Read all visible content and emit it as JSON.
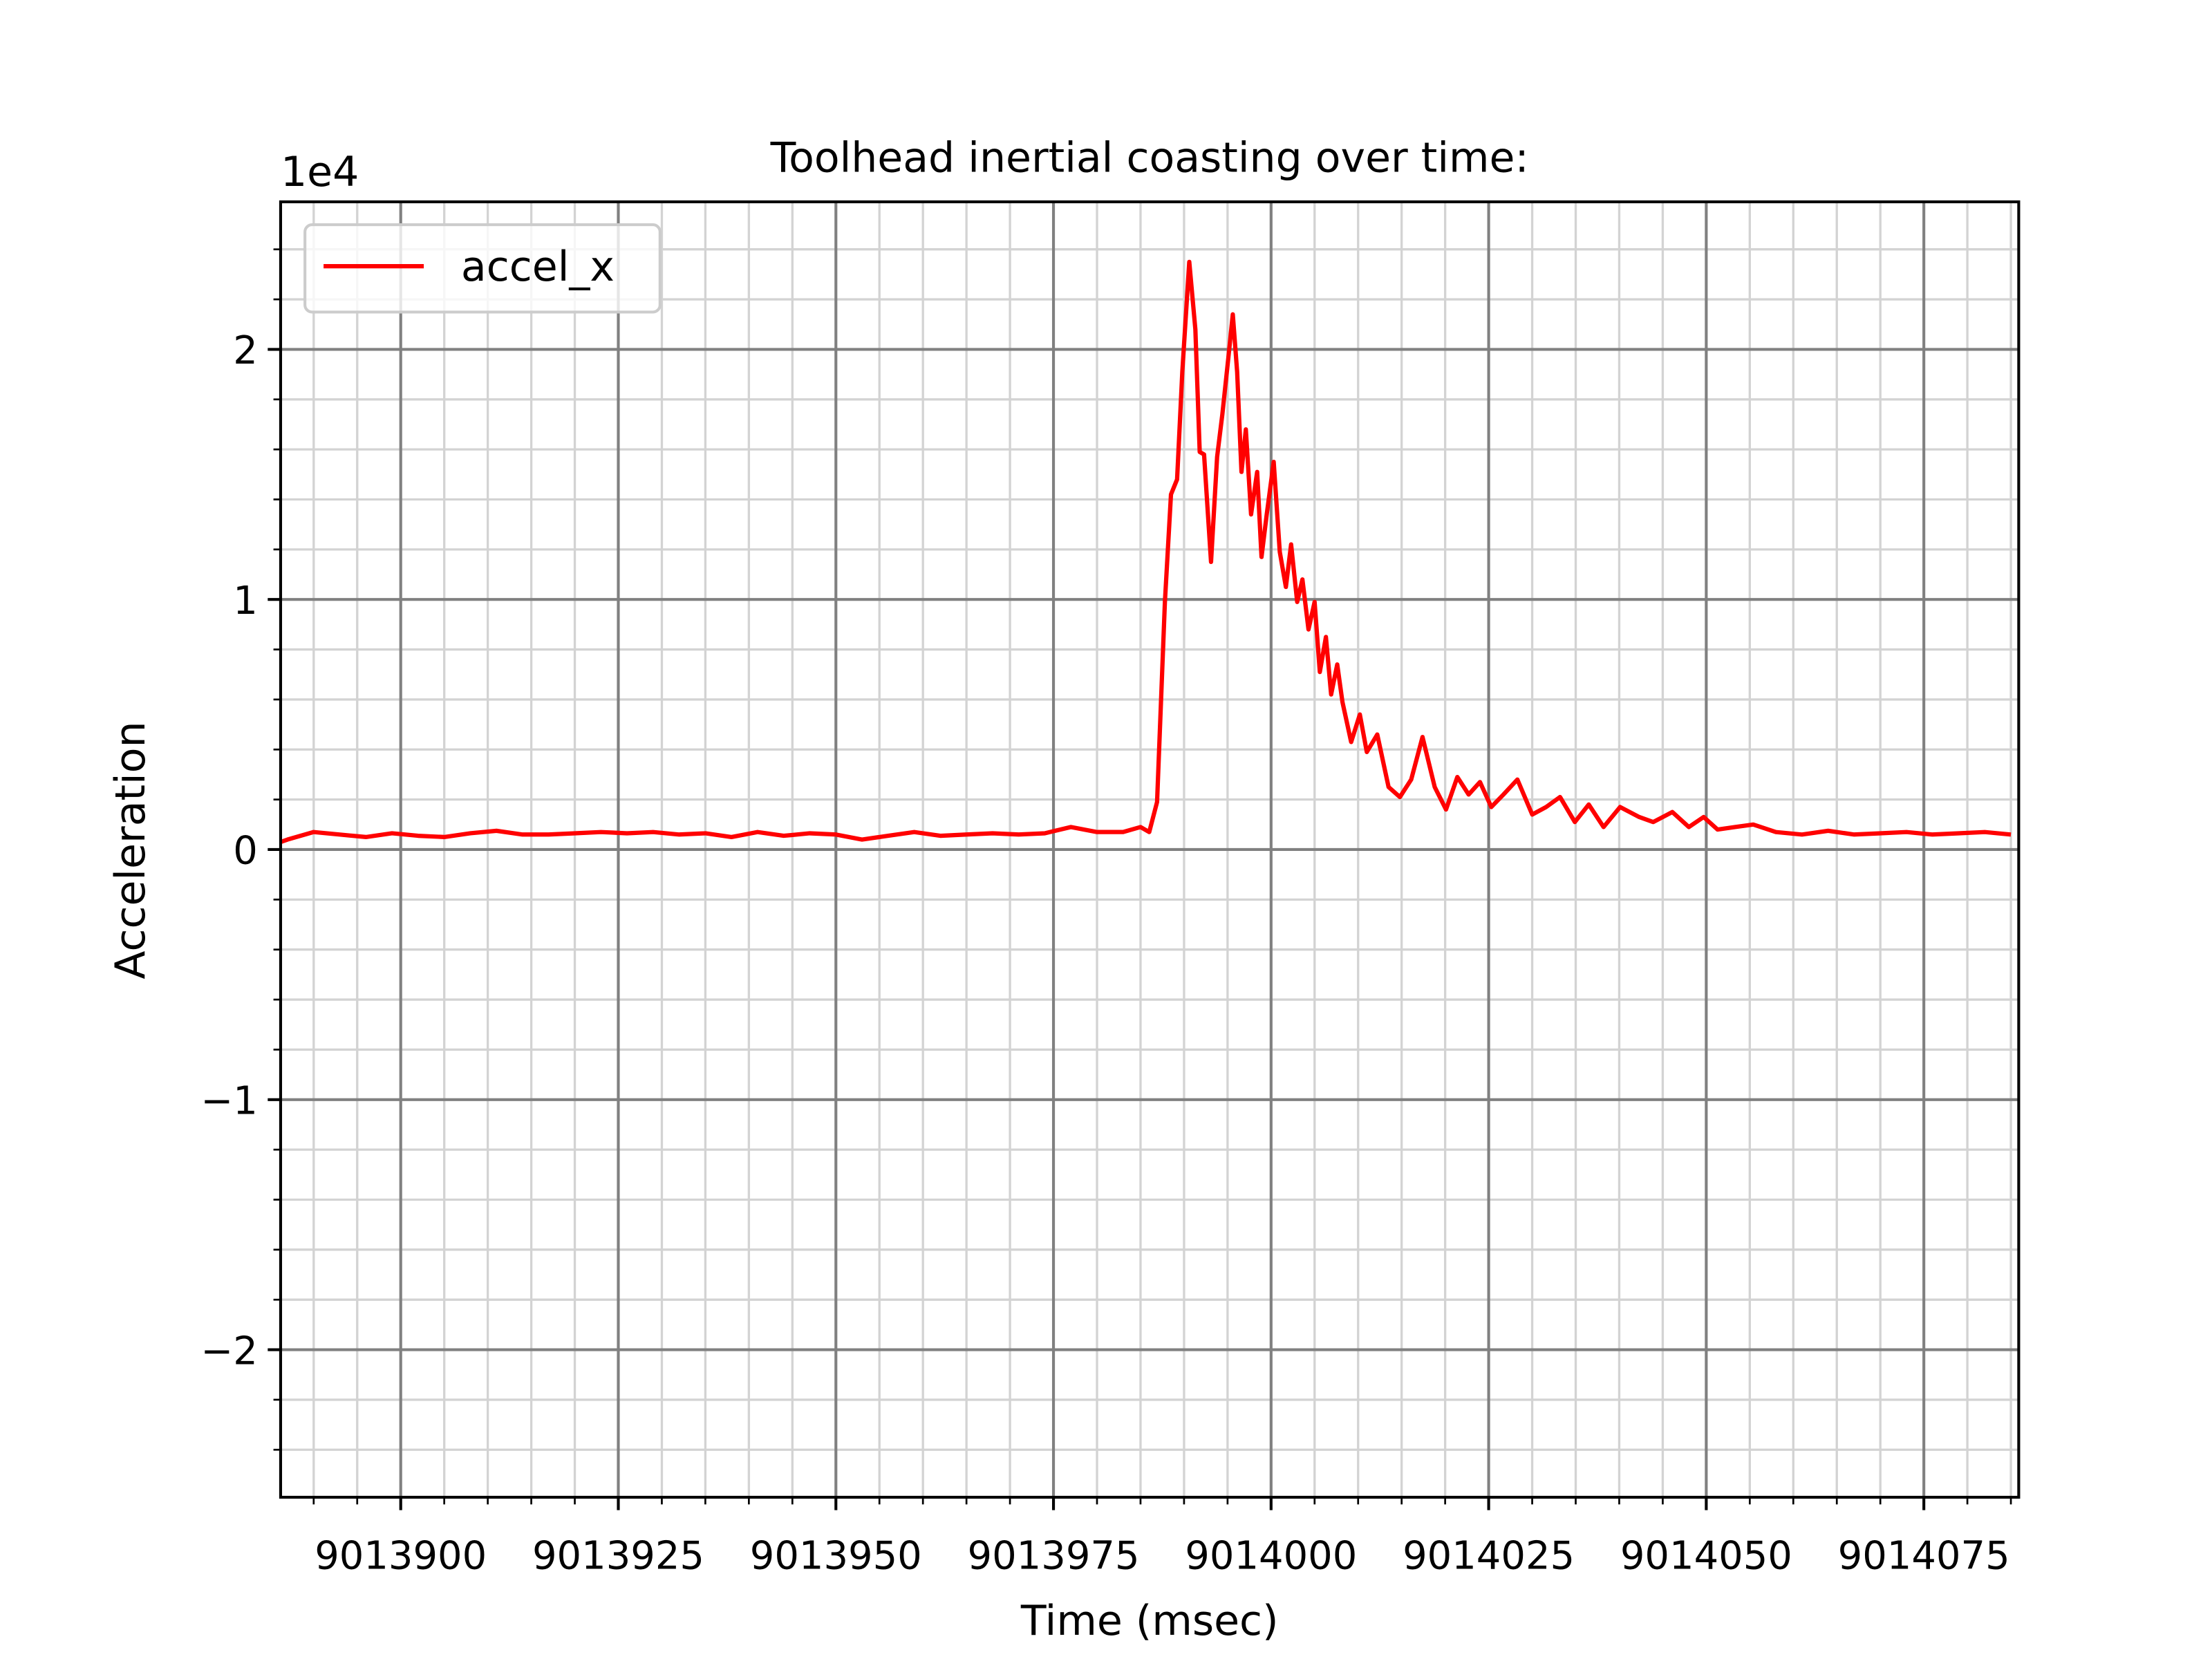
{
  "chart_data": {
    "type": "line",
    "title": "Toolhead inertial coasting over time:",
    "x_label": "Time (msec)",
    "y_label": "Acceleration",
    "y_offset_label": "1e4",
    "x": [
      9013886.2,
      9013887,
      9013890,
      9013893,
      9013896,
      9013899,
      9013902,
      9013905,
      9013908,
      9013911,
      9013914,
      9013917,
      9013920,
      9013923,
      9013926,
      9013929,
      9013932,
      9013935,
      9013938,
      9013941,
      9013944,
      9013947,
      9013950,
      9013953,
      9013956,
      9013959,
      9013962,
      9013965,
      9013968,
      9013971,
      9013974,
      9013977,
      9013980,
      9013983,
      9013985,
      9013986,
      9013986.9,
      9013987.8,
      9013988.5,
      9013989.2,
      9013989.8,
      9013990.6,
      9013991.3,
      9013991.8,
      9013992.3,
      9013993.1,
      9013993.8,
      9013994.4,
      9013995.1,
      9013995.6,
      9013996.1,
      9013996.6,
      9013997.1,
      9013997.7,
      9013998.4,
      9013998.9,
      9013999.5,
      9014000.3,
      9014001,
      9014001.7,
      9014002.3,
      9014003,
      9014003.6,
      9014004.3,
      9014005,
      9014005.6,
      9014006.3,
      9014006.9,
      9014007.6,
      9014008.2,
      9014009.2,
      9014010.2,
      9014011,
      9014012.2,
      9014013.5,
      9014014.8,
      9014016.1,
      9014017.4,
      9014018.8,
      9014020.1,
      9014021.4,
      9014022.7,
      9014024,
      9014025.3,
      9014026.7,
      9014028.3,
      9014030,
      9014031.6,
      9014033.2,
      9014034.9,
      9014036.5,
      9014038.2,
      9014040.1,
      9014042.3,
      9014043.9,
      9014046.1,
      9014048,
      9014049.7,
      9014051.3,
      9014053.3,
      9014055.4,
      9014058,
      9014061,
      9014064,
      9014067,
      9014070,
      9014073,
      9014076,
      9014079,
      9014082,
      9014085
    ],
    "series": [
      {
        "name": "accel_x",
        "color": "#ff0000",
        "values": [
          300,
          400,
          700,
          600,
          500,
          650,
          550,
          500,
          650,
          750,
          600,
          600,
          650,
          700,
          650,
          700,
          600,
          650,
          500,
          700,
          550,
          650,
          600,
          400,
          550,
          700,
          550,
          600,
          650,
          600,
          650,
          900,
          700,
          700,
          900,
          700,
          1900,
          9900,
          14200,
          14800,
          19100,
          23500,
          20800,
          15900,
          15800,
          11500,
          15700,
          17400,
          19700,
          21400,
          19100,
          15100,
          16800,
          13400,
          15100,
          11700,
          13400,
          15500,
          11900,
          10500,
          12200,
          9900,
          10800,
          8800,
          9900,
          7100,
          8500,
          6200,
          7400,
          5900,
          4300,
          5400,
          3900,
          4600,
          2500,
          2100,
          2800,
          4500,
          2500,
          1600,
          2900,
          2200,
          2700,
          1700,
          2200,
          2800,
          1400,
          1700,
          2100,
          1100,
          1800,
          900,
          1700,
          1300,
          1100,
          1500,
          900,
          1300,
          800,
          900,
          1000,
          700,
          600,
          750,
          600,
          650,
          700,
          600,
          650,
          700,
          600
        ]
      }
    ],
    "xlim": [
      9013886.2,
      9014085.9
    ],
    "ylim": [
      -25900,
      25900
    ],
    "xticks": [
      9013900,
      9013925,
      9013950,
      9013975,
      9014000,
      9014025,
      9014050,
      9014075
    ],
    "yticks": [
      {
        "value": -20000,
        "label": "−2"
      },
      {
        "value": -10000,
        "label": "−1"
      },
      0,
      {
        "value": 10000,
        "label": "1"
      },
      {
        "value": 20000,
        "label": "2"
      }
    ],
    "xminorticks": [
      9013890,
      9013895,
      9013905,
      9013910,
      9013915,
      9013920,
      9013930,
      9013935,
      9013940,
      9013945,
      9013955,
      9013960,
      9013965,
      9013970,
      9013980,
      9013985,
      9013990,
      9013995,
      9014005,
      9014010,
      9014015,
      9014020,
      9014030,
      9014035,
      9014040,
      9014045,
      9014055,
      9014060,
      9014065,
      9014070,
      9014080,
      9014085
    ],
    "yminorticks": [
      -24000,
      -22000,
      -18000,
      -16000,
      -14000,
      -12000,
      -8000,
      -6000,
      -4000,
      -2000,
      2000,
      4000,
      6000,
      8000,
      12000,
      14000,
      16000,
      18000,
      22000,
      24000
    ],
    "grid": true,
    "minor_grid": true,
    "grid_color": "#808080",
    "minor_grid_color": "#d3d3d3",
    "legend": "upper left"
  }
}
